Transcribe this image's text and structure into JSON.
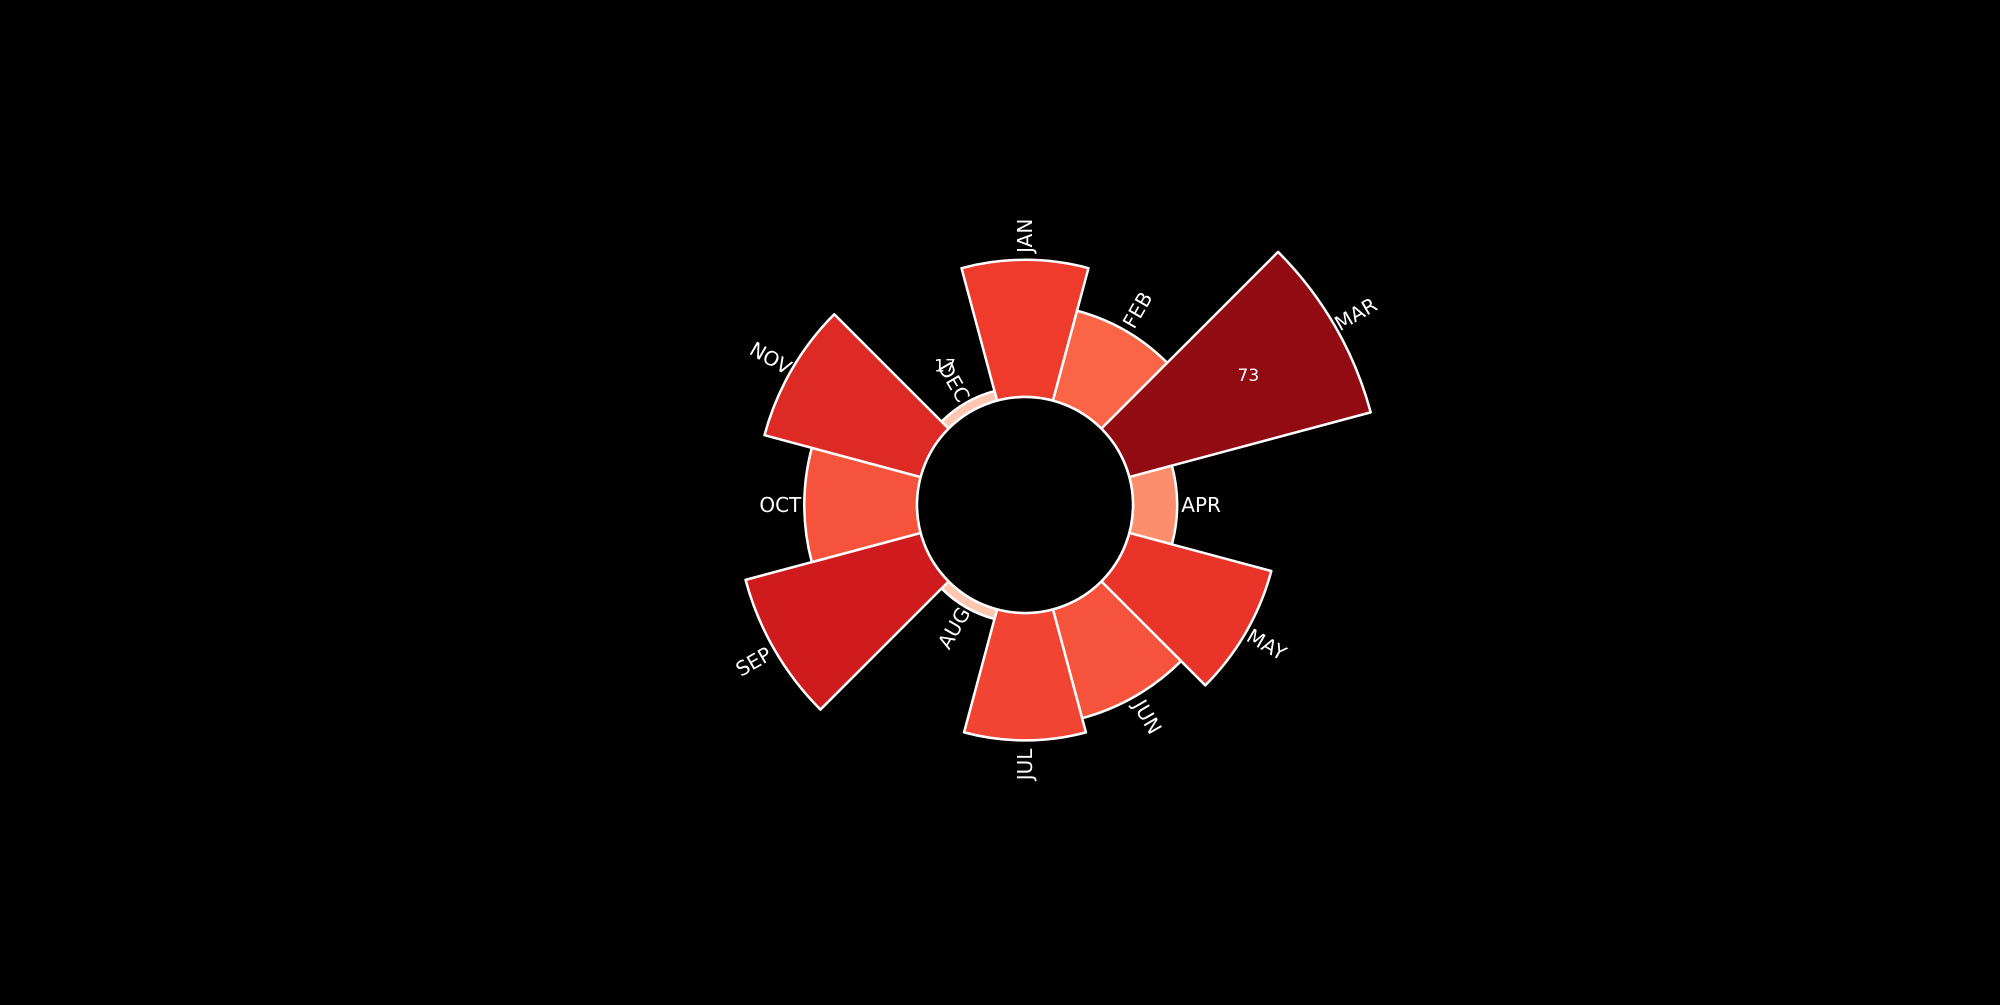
{
  "chart_data": {
    "type": "polar-bar",
    "title": "",
    "categories": [
      "JAN",
      "FEB",
      "MAR",
      "APR",
      "MAY",
      "JUN",
      "JUL",
      "AUG",
      "SEP",
      "OCT",
      "NOV",
      "DEC"
    ],
    "values": [
      50,
      41,
      73,
      31,
      52,
      45,
      48,
      17,
      59,
      45,
      55,
      17
    ],
    "inner_radius_value": 22,
    "value_labels": [
      {
        "category": "MAR",
        "text": "73"
      },
      {
        "category": "DEC",
        "text": "17"
      }
    ],
    "start_angle": "top",
    "direction": "clockwise",
    "colormap": "Reds",
    "color_range": [
      0,
      80
    ],
    "background_color": "#000000",
    "edge_color": "#ffffff",
    "label_color": "#ffffff"
  }
}
